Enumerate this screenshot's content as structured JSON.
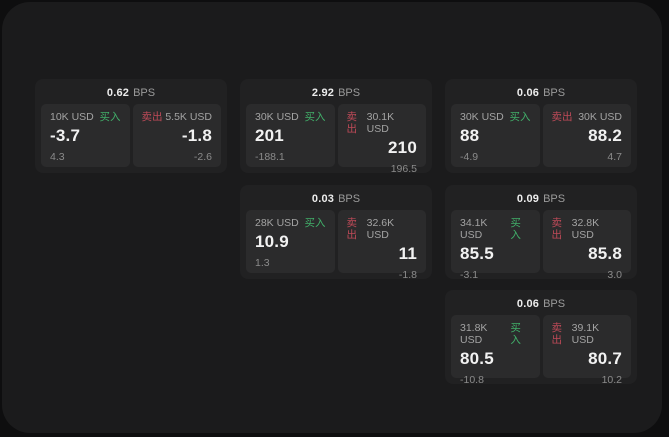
{
  "page": {
    "backdrop_color": "#0e0e0f",
    "panel_color": "#1b1b1c"
  },
  "labels": {
    "buy": "买入",
    "sell": "卖出",
    "bps_unit": "BPS"
  },
  "colors": {
    "buy_green": "#41b06a",
    "sell_red": "#bf4a58",
    "price_white": "#f2f2f2",
    "card_bg": "#212122",
    "tile_bg": "#2b2b2c"
  },
  "cards": [
    {
      "bps": "0.62",
      "buy": {
        "amount": "10K USD",
        "price": "-3.7",
        "delta": "4.3"
      },
      "sell": {
        "amount": "5.5K USD",
        "price": "-1.8",
        "delta": "-2.6"
      }
    },
    {
      "bps": "2.92",
      "buy": {
        "amount": "30K USD",
        "price": "201",
        "delta": "-188.1"
      },
      "sell": {
        "amount": "30.1K USD",
        "price": "210",
        "delta": "196.5"
      }
    },
    {
      "bps": "0.06",
      "buy": {
        "amount": "30K USD",
        "price": "88",
        "delta": "-4.9"
      },
      "sell": {
        "amount": "30K USD",
        "price": "88.2",
        "delta": "4.7"
      }
    },
    {
      "bps": "0.03",
      "buy": {
        "amount": "28K USD",
        "price": "10.9",
        "delta": "1.3"
      },
      "sell": {
        "amount": "32.6K USD",
        "price": "11",
        "delta": "-1.8"
      }
    },
    {
      "bps": "0.09",
      "buy": {
        "amount": "34.1K USD",
        "price": "85.5",
        "delta": "-3.1"
      },
      "sell": {
        "amount": "32.8K USD",
        "price": "85.8",
        "delta": "3.0"
      }
    },
    {
      "bps": "0.06",
      "buy": {
        "amount": "31.8K USD",
        "price": "80.5",
        "delta": "-10.8"
      },
      "sell": {
        "amount": "39.1K USD",
        "price": "80.7",
        "delta": "10.2"
      }
    }
  ]
}
